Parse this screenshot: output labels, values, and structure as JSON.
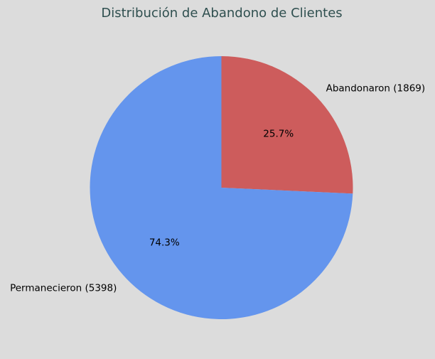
{
  "chart_data": {
    "type": "pie",
    "title": "Distribución de Abandono de Clientes",
    "slices": [
      {
        "label": "Abandonaron (1869)",
        "value": 1869,
        "percent_label": "25.7%",
        "color": "#cd5c5c"
      },
      {
        "label": "Permanecieron (5398)",
        "value": 5398,
        "percent_label": "74.3%",
        "color": "#6495ed"
      }
    ],
    "start_angle_deg": 90,
    "direction": "clockwise"
  },
  "colors": {
    "background": "#dcdcdc",
    "title": "#2f4f4f"
  }
}
